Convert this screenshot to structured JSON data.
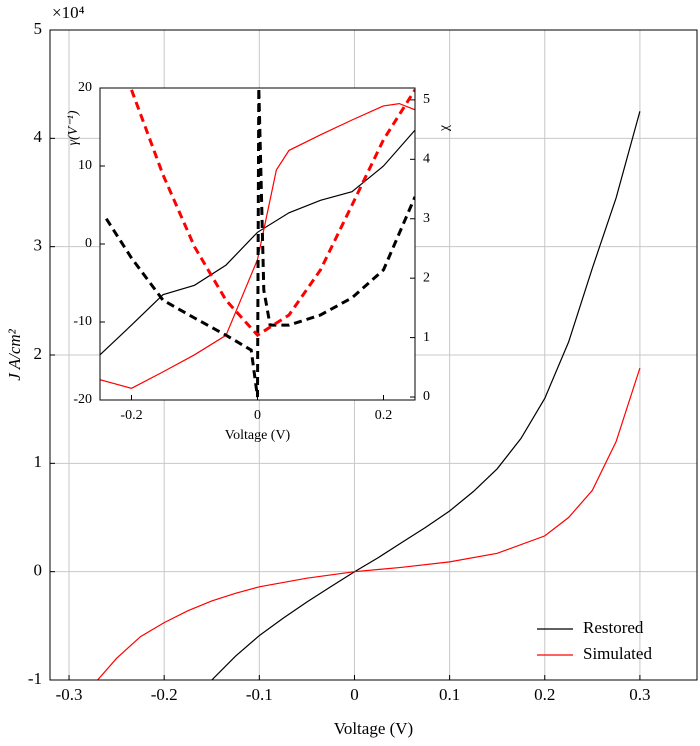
{
  "chart_data": [
    {
      "type": "line",
      "xlabel": "Voltage (V)",
      "ylabel": "J A/cm²",
      "y_multiplier": "×10⁴",
      "xlim": [
        -0.32,
        0.36
      ],
      "ylim": [
        -1,
        5
      ],
      "xticks": [
        -0.3,
        -0.2,
        -0.1,
        0,
        0.1,
        0.2,
        0.3
      ],
      "yticks": [
        -1,
        0,
        1,
        2,
        3,
        4,
        5
      ],
      "grid": true,
      "legend": "lower-right",
      "series": [
        {
          "name": "Restored",
          "color": "#000000",
          "x": [
            -0.15,
            -0.125,
            -0.1,
            -0.075,
            -0.05,
            -0.025,
            0,
            0.025,
            0.05,
            0.075,
            0.1,
            0.125,
            0.15,
            0.175,
            0.2,
            0.225,
            0.25,
            0.275,
            0.3
          ],
          "values": [
            -1,
            -0.78,
            -0.59,
            -0.43,
            -0.28,
            -0.14,
            0,
            0.13,
            0.27,
            0.41,
            0.56,
            0.74,
            0.95,
            1.23,
            1.6,
            2.12,
            2.8,
            3.45,
            4.25
          ]
        },
        {
          "name": "Simulated",
          "color": "#ff0000",
          "x": [
            -0.27,
            -0.25,
            -0.225,
            -0.2,
            -0.175,
            -0.15,
            -0.125,
            -0.1,
            -0.05,
            0,
            0.05,
            0.1,
            0.15,
            0.2,
            0.225,
            0.25,
            0.275,
            0.3
          ],
          "values": [
            -1,
            -0.8,
            -0.6,
            -0.47,
            -0.36,
            -0.27,
            -0.2,
            -0.14,
            -0.06,
            0,
            0.04,
            0.09,
            0.17,
            0.33,
            0.5,
            0.75,
            1.2,
            1.88
          ]
        }
      ]
    },
    {
      "type": "line",
      "xlabel": "Voltage (V)",
      "ylabel": "γ(V⁻¹)",
      "y2label": "χ",
      "xlim": [
        -0.25,
        0.25
      ],
      "ylim": [
        -20,
        20
      ],
      "y2lim": [
        -0.05,
        5.2
      ],
      "xticks": [
        -0.2,
        0,
        0.2
      ],
      "yticks": [
        -20,
        -10,
        0,
        10,
        20
      ],
      "y2ticks": [
        0,
        1,
        2,
        3,
        4,
        5
      ],
      "grid": false,
      "series": [
        {
          "color": "#000000",
          "dashed": false,
          "x": [
            -0.25,
            -0.2,
            -0.15,
            -0.1,
            -0.05,
            0,
            0.05,
            0.1,
            0.15,
            0.2,
            0.25
          ],
          "values": [
            -14.2,
            -10.4,
            -6.5,
            -5.3,
            -2.7,
            1.5,
            4,
            5.6,
            6.7,
            10,
            14.6
          ]
        },
        {
          "color": "#ff0000",
          "dashed": false,
          "x": [
            -0.25,
            -0.2,
            -0.15,
            -0.1,
            -0.05,
            0,
            0.03,
            0.05,
            0.1,
            0.15,
            0.2,
            0.225,
            0.25
          ],
          "values": [
            -17.4,
            -18.5,
            -16.4,
            -14.2,
            -11.7,
            -2,
            9.5,
            12,
            14,
            15.9,
            17.7,
            18,
            17.2
          ]
        },
        {
          "color": "#000000",
          "dashed": true,
          "axis": "y2",
          "x": [
            -0.24,
            -0.2,
            -0.15,
            -0.1,
            -0.05,
            -0.01,
            0,
            0.002,
            0.01,
            0.02,
            0.05,
            0.1,
            0.15,
            0.2,
            0.25
          ],
          "values": [
            3.0,
            2.34,
            1.63,
            1.33,
            1.04,
            0.79,
            0,
            5.2,
            1.8,
            1.21,
            1.21,
            1.38,
            1.67,
            2.14,
            3.37
          ]
        },
        {
          "color": "#ff0000",
          "dashed": true,
          "axis": "y2",
          "x": [
            -0.2,
            -0.15,
            -0.1,
            -0.05,
            0,
            0.05,
            0.1,
            0.15,
            0.2,
            0.25
          ],
          "values": [
            5.17,
            3.74,
            2.53,
            1.63,
            1.04,
            1.38,
            2.14,
            3.23,
            4.33,
            5.17
          ]
        }
      ]
    }
  ]
}
